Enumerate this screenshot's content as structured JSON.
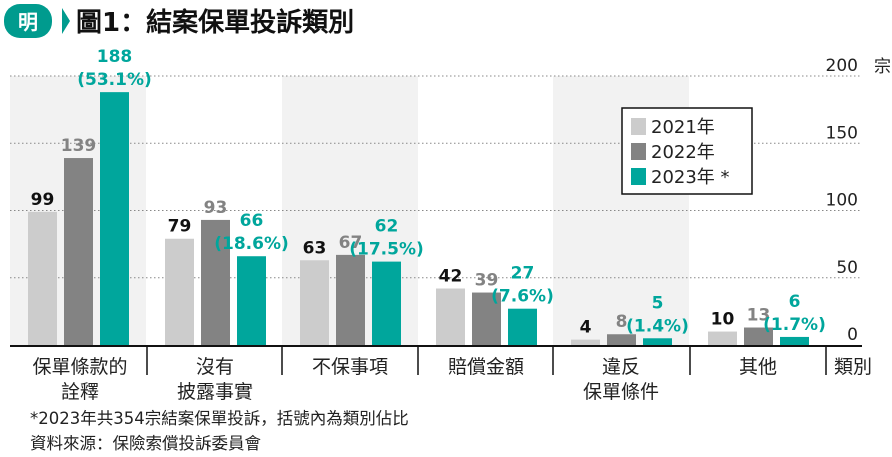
{
  "header": {
    "logo_text": "明",
    "title": "圖1：結案保單投訴類別"
  },
  "chart_data": {
    "type": "bar",
    "title": "圖1：結案保單投訴類別",
    "xlabel": "類別",
    "yunit": "宗",
    "ylim": [
      0,
      200
    ],
    "yticks": [
      0,
      50,
      100,
      150,
      200
    ],
    "ytick_labels": [
      "0",
      "50",
      "100",
      "150",
      "200"
    ],
    "grid": true,
    "legend": "top-right",
    "categories": [
      [
        "保單條款的",
        "詮釋"
      ],
      [
        "沒有",
        "披露事實"
      ],
      [
        "不保事項"
      ],
      [
        "賠償金額"
      ],
      [
        "違反",
        "保單條件"
      ],
      [
        "其他"
      ]
    ],
    "series": [
      {
        "name": "2021年",
        "color": "#cccccc",
        "label_color": "#111111",
        "values": [
          99,
          79,
          63,
          42,
          4,
          10
        ]
      },
      {
        "name": "2022年",
        "color": "#838383",
        "label_color": "#838383",
        "values": [
          139,
          93,
          67,
          39,
          8,
          13
        ]
      },
      {
        "name": "2023年 *",
        "color": "#00a69c",
        "label_color": "#00a69c",
        "values": [
          188,
          66,
          62,
          27,
          5,
          6
        ],
        "percent_labels": [
          "(53.1%)",
          "(18.6%)",
          "(17.5%)",
          "(7.6%)",
          "(1.4%)",
          "(1.7%)"
        ]
      }
    ]
  },
  "footnotes": [
    "*2023年共354宗結案保單投訴，括號內為類別佔比",
    "資料來源：保險索償投訴委員會"
  ]
}
